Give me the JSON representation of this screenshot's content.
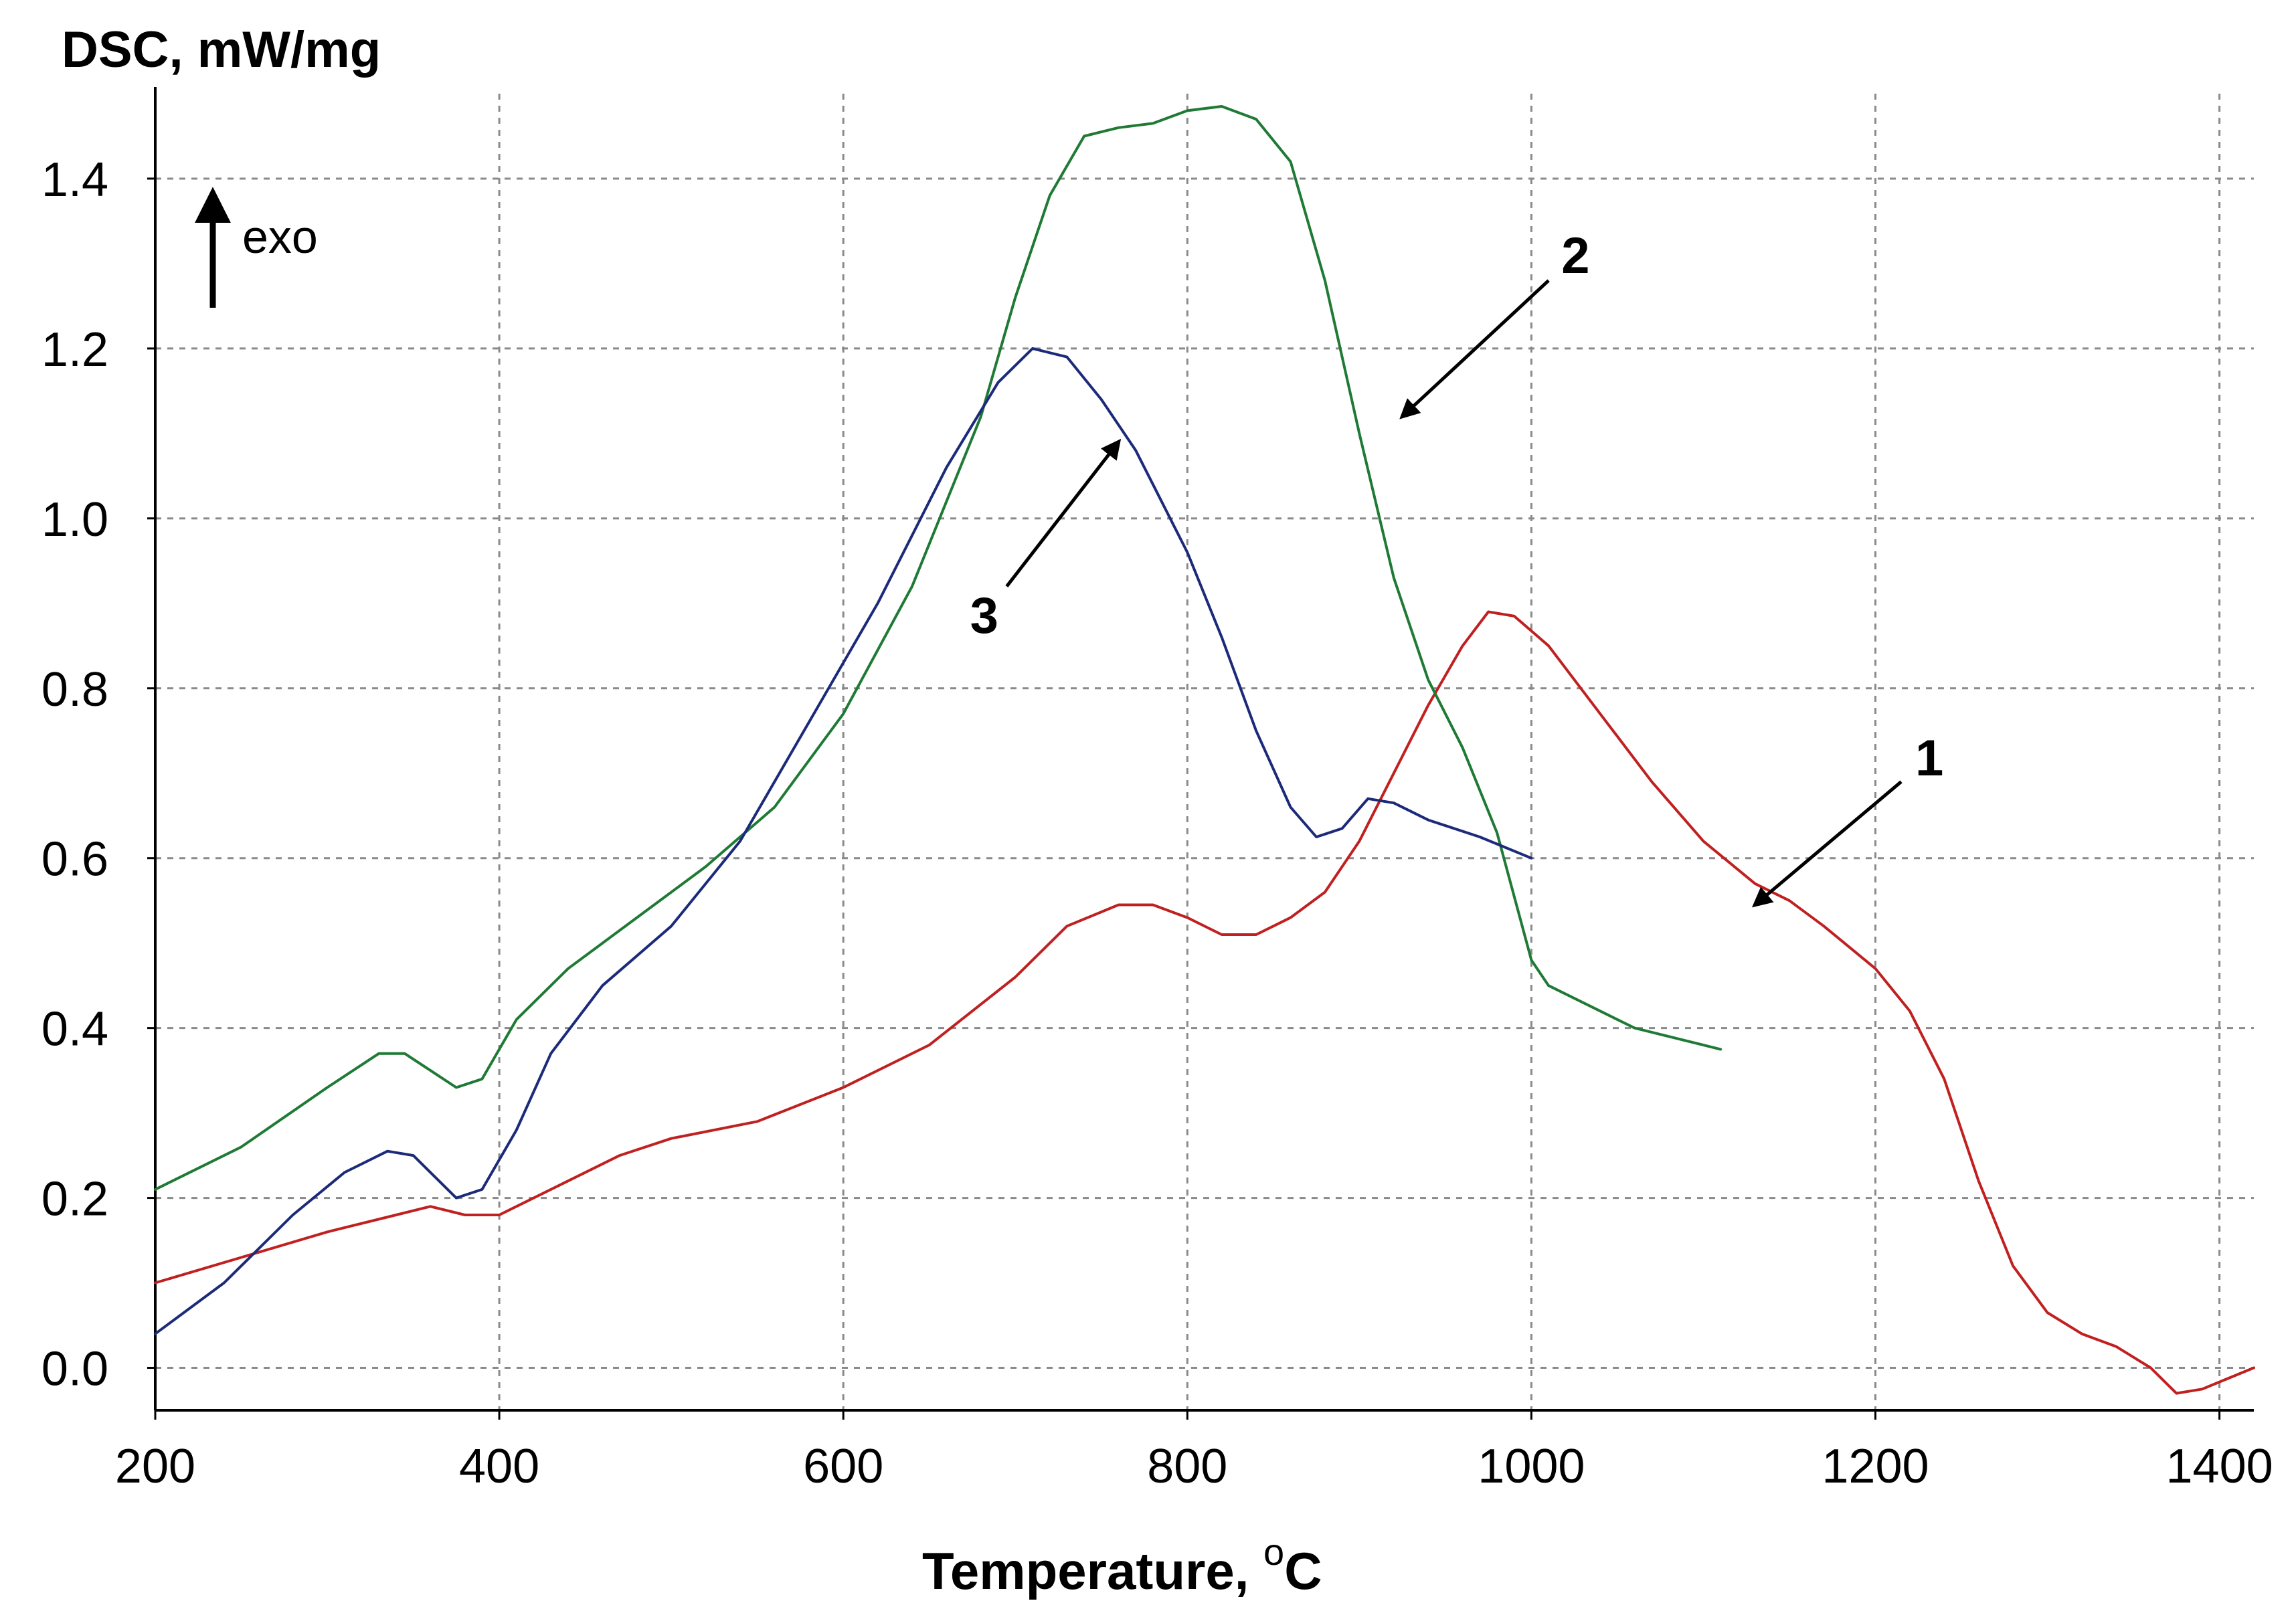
{
  "chart_data": {
    "type": "line",
    "title": "",
    "ylabel": "DSC, mW/mg",
    "xlabel_main": "Temperature, ",
    "xlabel_sup": "o",
    "xlabel_unit": "C",
    "xlim": [
      200,
      1420
    ],
    "ylim": [
      -0.05,
      1.5
    ],
    "x_ticks": [
      200,
      400,
      600,
      800,
      1000,
      1200,
      1400
    ],
    "x_tick_labels": [
      "200",
      "400",
      "600",
      "800",
      "1000",
      "1200",
      "1400"
    ],
    "y_ticks": [
      0.0,
      0.2,
      0.4,
      0.6,
      0.8,
      1.0,
      1.2,
      1.4
    ],
    "y_tick_labels": [
      "0.0",
      "0.2",
      "0.4",
      "0.6",
      "0.8",
      "1.0",
      "1.2",
      "1.4"
    ],
    "grid": true,
    "exo_label": "exo",
    "series": [
      {
        "name": "1",
        "color": "#c02020",
        "points": [
          [
            200,
            0.1
          ],
          [
            250,
            0.13
          ],
          [
            300,
            0.16
          ],
          [
            340,
            0.18
          ],
          [
            360,
            0.19
          ],
          [
            380,
            0.18
          ],
          [
            400,
            0.18
          ],
          [
            440,
            0.22
          ],
          [
            470,
            0.25
          ],
          [
            500,
            0.27
          ],
          [
            550,
            0.29
          ],
          [
            600,
            0.33
          ],
          [
            650,
            0.38
          ],
          [
            700,
            0.46
          ],
          [
            730,
            0.52
          ],
          [
            760,
            0.545
          ],
          [
            780,
            0.545
          ],
          [
            800,
            0.53
          ],
          [
            820,
            0.51
          ],
          [
            840,
            0.51
          ],
          [
            860,
            0.53
          ],
          [
            880,
            0.56
          ],
          [
            900,
            0.62
          ],
          [
            920,
            0.7
          ],
          [
            940,
            0.78
          ],
          [
            960,
            0.85
          ],
          [
            975,
            0.89
          ],
          [
            990,
            0.885
          ],
          [
            1010,
            0.85
          ],
          [
            1040,
            0.77
          ],
          [
            1070,
            0.69
          ],
          [
            1100,
            0.62
          ],
          [
            1130,
            0.57
          ],
          [
            1150,
            0.55
          ],
          [
            1170,
            0.52
          ],
          [
            1200,
            0.47
          ],
          [
            1220,
            0.42
          ],
          [
            1240,
            0.34
          ],
          [
            1260,
            0.22
          ],
          [
            1280,
            0.12
          ],
          [
            1300,
            0.065
          ],
          [
            1320,
            0.04
          ],
          [
            1340,
            0.025
          ],
          [
            1360,
            0.0
          ],
          [
            1375,
            -0.03
          ],
          [
            1390,
            -0.025
          ],
          [
            1420,
            0.0
          ]
        ]
      },
      {
        "name": "2",
        "color": "#1e7a34",
        "points": [
          [
            200,
            0.21
          ],
          [
            250,
            0.26
          ],
          [
            300,
            0.33
          ],
          [
            330,
            0.37
          ],
          [
            345,
            0.37
          ],
          [
            360,
            0.35
          ],
          [
            375,
            0.33
          ],
          [
            390,
            0.34
          ],
          [
            410,
            0.41
          ],
          [
            440,
            0.47
          ],
          [
            480,
            0.53
          ],
          [
            520,
            0.59
          ],
          [
            560,
            0.66
          ],
          [
            600,
            0.77
          ],
          [
            640,
            0.92
          ],
          [
            680,
            1.12
          ],
          [
            700,
            1.26
          ],
          [
            720,
            1.38
          ],
          [
            740,
            1.45
          ],
          [
            760,
            1.46
          ],
          [
            780,
            1.465
          ],
          [
            800,
            1.48
          ],
          [
            820,
            1.485
          ],
          [
            840,
            1.47
          ],
          [
            860,
            1.42
          ],
          [
            880,
            1.28
          ],
          [
            900,
            1.1
          ],
          [
            920,
            0.93
          ],
          [
            940,
            0.81
          ],
          [
            960,
            0.73
          ],
          [
            980,
            0.63
          ],
          [
            1000,
            0.48
          ],
          [
            1010,
            0.45
          ],
          [
            1030,
            0.43
          ],
          [
            1060,
            0.4
          ],
          [
            1080,
            0.39
          ],
          [
            1110,
            0.375
          ]
        ]
      },
      {
        "name": "3",
        "color": "#1c2a7a",
        "points": [
          [
            200,
            0.04
          ],
          [
            240,
            0.1
          ],
          [
            280,
            0.18
          ],
          [
            310,
            0.23
          ],
          [
            335,
            0.255
          ],
          [
            350,
            0.25
          ],
          [
            365,
            0.22
          ],
          [
            375,
            0.2
          ],
          [
            390,
            0.21
          ],
          [
            410,
            0.28
          ],
          [
            430,
            0.37
          ],
          [
            460,
            0.45
          ],
          [
            500,
            0.52
          ],
          [
            540,
            0.62
          ],
          [
            580,
            0.76
          ],
          [
            620,
            0.9
          ],
          [
            660,
            1.06
          ],
          [
            690,
            1.16
          ],
          [
            710,
            1.2
          ],
          [
            730,
            1.19
          ],
          [
            750,
            1.14
          ],
          [
            770,
            1.08
          ],
          [
            800,
            0.96
          ],
          [
            820,
            0.86
          ],
          [
            840,
            0.75
          ],
          [
            860,
            0.66
          ],
          [
            875,
            0.625
          ],
          [
            890,
            0.635
          ],
          [
            905,
            0.67
          ],
          [
            920,
            0.665
          ],
          [
            940,
            0.645
          ],
          [
            970,
            0.625
          ],
          [
            1000,
            0.6
          ]
        ]
      }
    ],
    "annotations": [
      {
        "label": "1",
        "target": [
          1130,
          0.545
        ],
        "tail": [
          1215,
          0.69
        ]
      },
      {
        "label": "2",
        "target": [
          925,
          1.12
        ],
        "tail": [
          1010,
          1.28
        ]
      },
      {
        "label": "3",
        "target": [
          760,
          1.09
        ],
        "tail": [
          695,
          0.92
        ]
      }
    ]
  }
}
